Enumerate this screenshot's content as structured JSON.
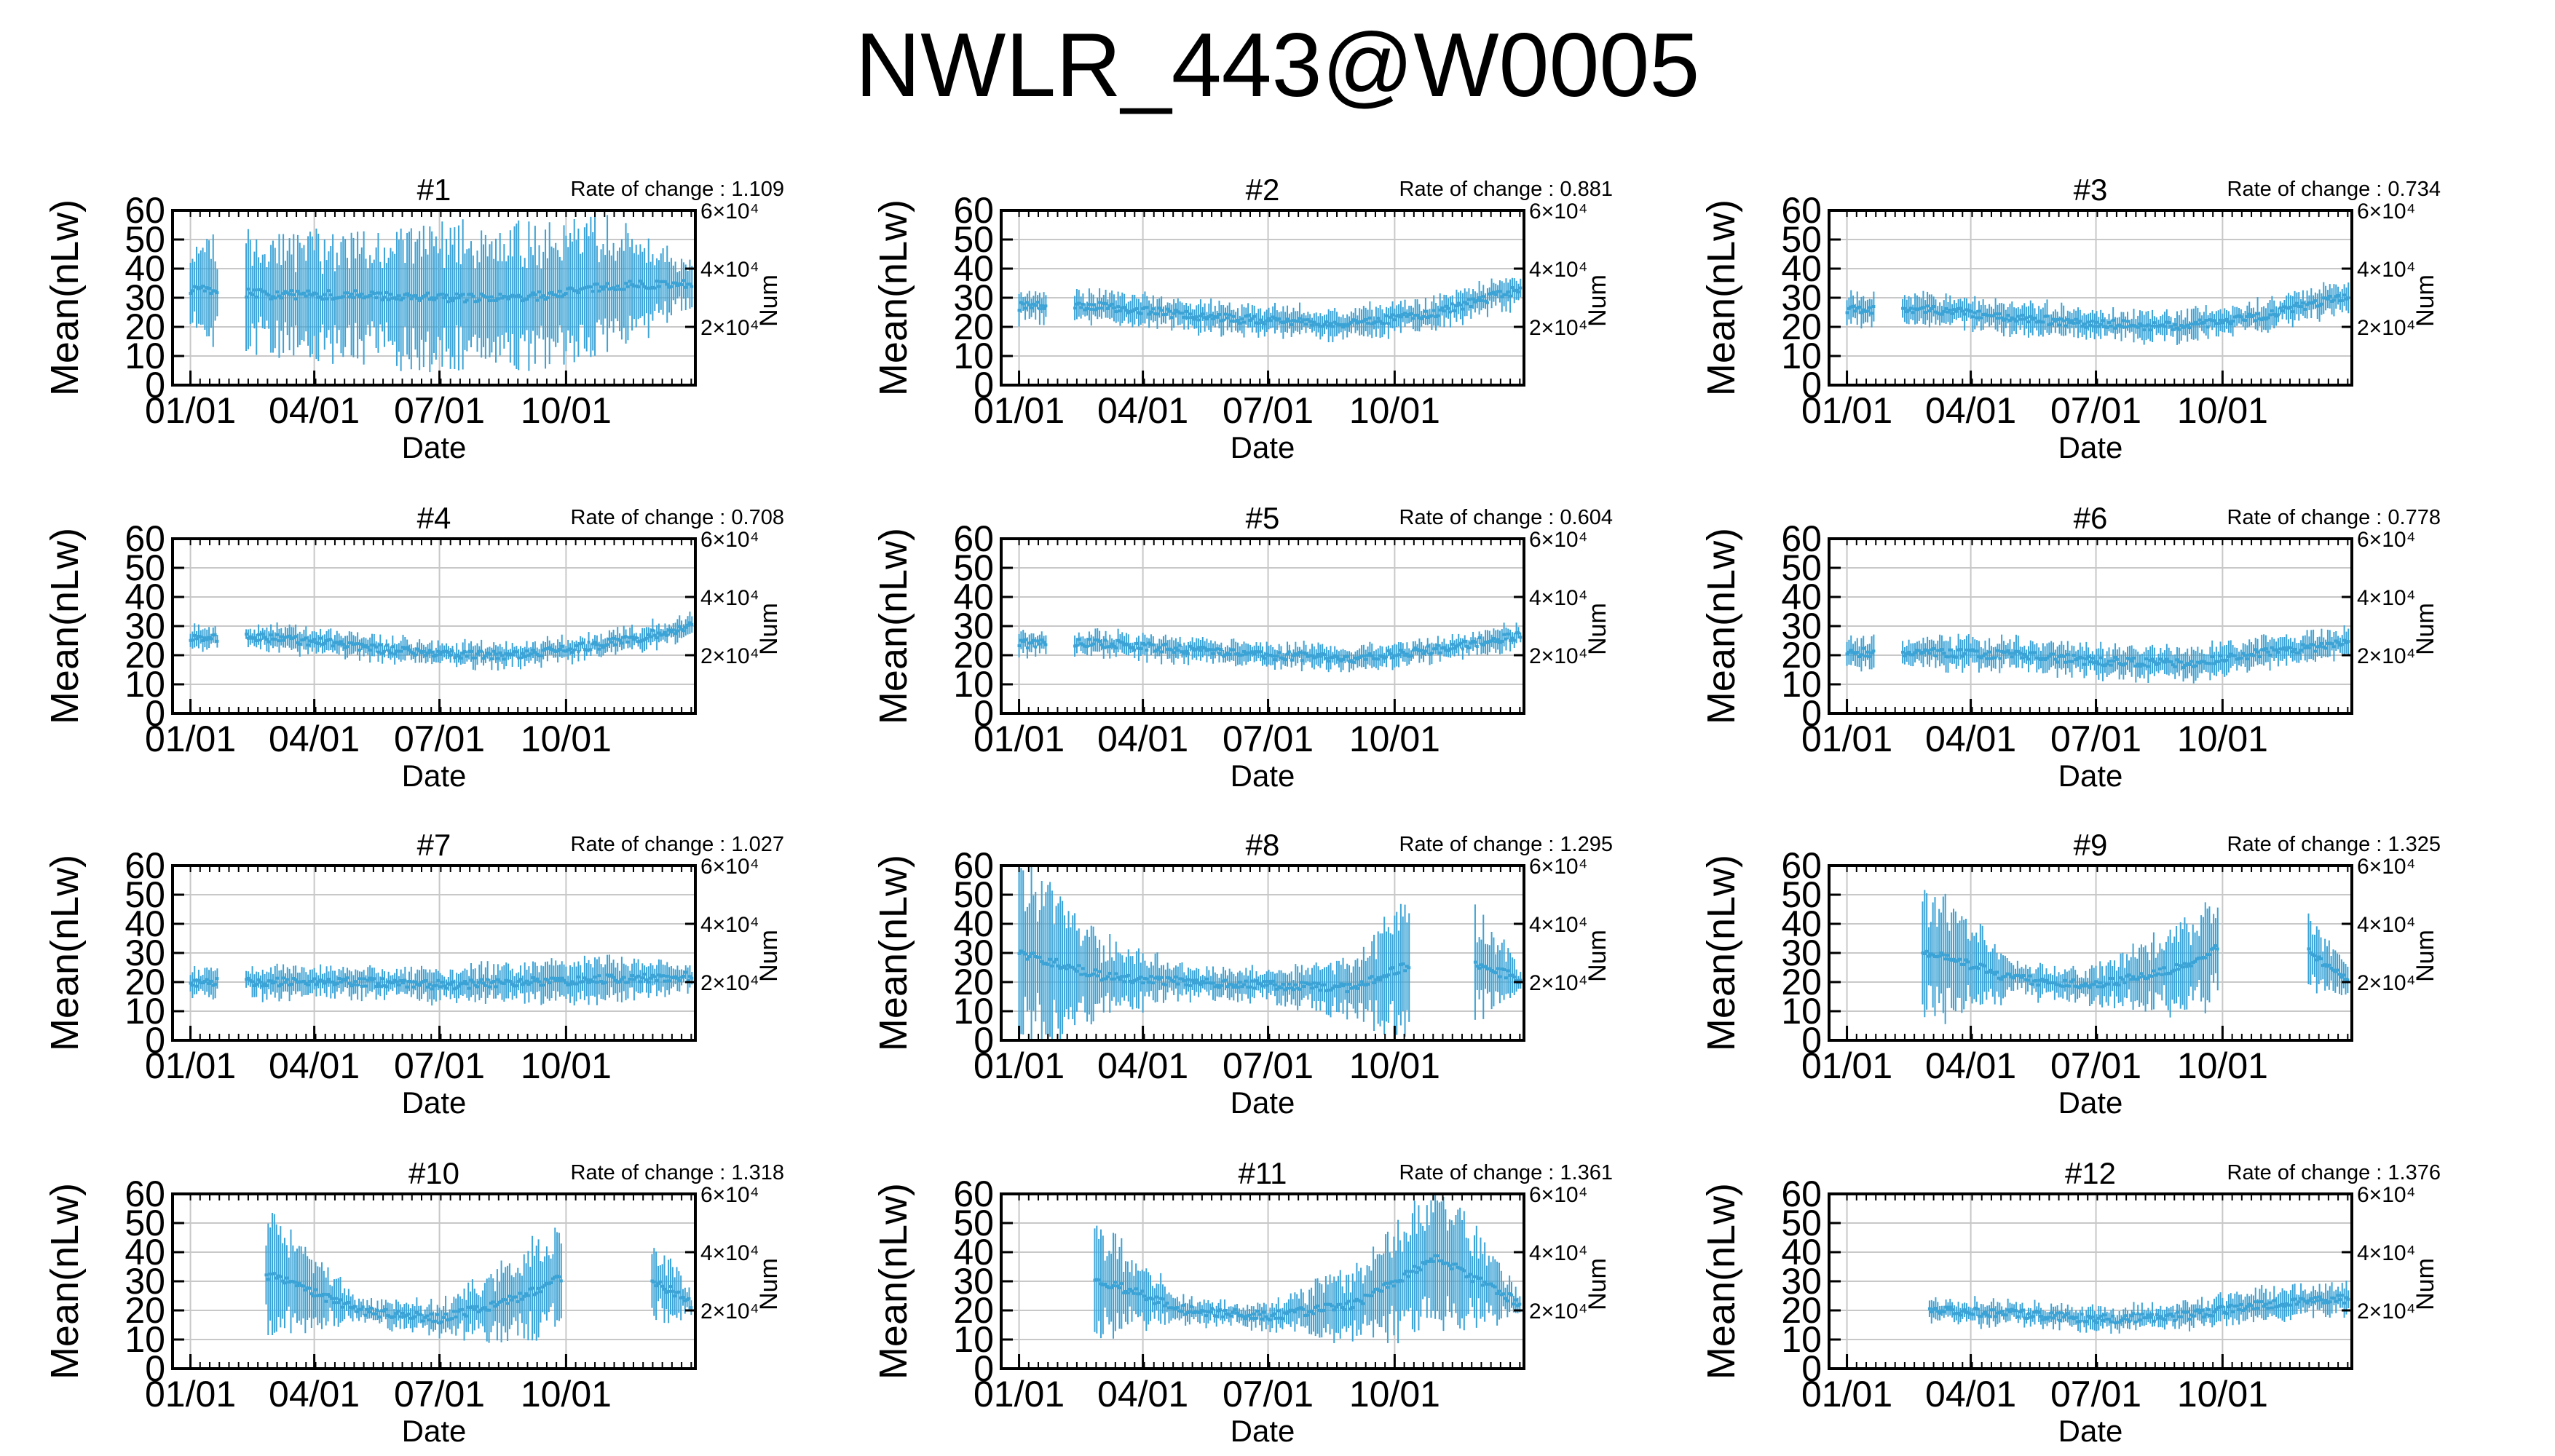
{
  "title": "NWLR_443@W0005",
  "common": {
    "ylabel": "Mean(nLw)",
    "xlabel": "Date",
    "y2label": "Num",
    "rate_prefix": "Rate of change : ",
    "x_ticks": [
      "01/01",
      "04/01",
      "07/01",
      "10/01"
    ],
    "y_ticks": [
      0,
      10,
      20,
      30,
      40,
      50,
      60
    ],
    "y2_ticks": [
      "2×10⁴",
      "4×10⁴",
      "6×10⁴"
    ],
    "ylim": [
      0,
      60
    ],
    "xlim_days": [
      -13,
      367
    ],
    "series_color": "#3ba3d6",
    "grid": true
  },
  "chart_data": [
    {
      "type": "scatter",
      "title": "#1",
      "rate": "1.109",
      "x_range": [
        0,
        365
      ],
      "gaps": [
        [
          21,
          40
        ]
      ],
      "base": [
        33,
        31,
        31,
        30,
        30,
        34,
        35
      ],
      "spread": [
        13,
        15,
        16,
        18,
        18,
        17,
        6
      ]
    },
    {
      "type": "scatter",
      "title": "#2",
      "rate": "0.881",
      "x_range": [
        0,
        365
      ],
      "gaps": [
        [
          21,
          40
        ]
      ],
      "base": [
        27,
        27,
        24,
        22,
        21,
        25,
        33
      ],
      "spread": [
        4,
        4,
        4,
        4,
        4,
        4,
        4
      ]
    },
    {
      "type": "scatter",
      "title": "#3",
      "rate": "0.734",
      "x_range": [
        0,
        365
      ],
      "gaps": [
        [
          21,
          40
        ]
      ],
      "base": [
        26,
        26,
        23,
        21,
        20,
        24,
        31
      ],
      "spread": [
        4,
        4,
        4,
        4,
        4,
        4,
        4
      ]
    },
    {
      "type": "scatter",
      "title": "#4",
      "rate": "0.708",
      "x_range": [
        0,
        365
      ],
      "gaps": [
        [
          21,
          40
        ]
      ],
      "base": [
        26,
        26,
        23,
        20,
        20,
        24,
        30
      ],
      "spread": [
        3,
        3,
        3,
        3,
        3,
        3,
        3
      ]
    },
    {
      "type": "scatter",
      "title": "#5",
      "rate": "0.604",
      "x_range": [
        0,
        365
      ],
      "gaps": [
        [
          21,
          40
        ]
      ],
      "base": [
        24,
        24,
        22,
        20,
        19,
        22,
        27
      ],
      "spread": [
        3,
        3,
        3,
        3,
        3,
        3,
        3
      ]
    },
    {
      "type": "scatter",
      "title": "#6",
      "rate": "0.778",
      "x_range": [
        0,
        365
      ],
      "gaps": [
        [
          21,
          40
        ]
      ],
      "base": [
        21,
        21,
        20,
        18,
        17,
        21,
        24
      ],
      "spread": [
        4,
        4,
        4,
        4,
        4,
        4,
        4
      ]
    },
    {
      "type": "scatter",
      "title": "#7",
      "rate": "1.027",
      "x_range": [
        0,
        365
      ],
      "gaps": [
        [
          21,
          40
        ]
      ],
      "base": [
        20,
        20,
        20,
        19,
        20,
        21,
        22
      ],
      "spread": [
        4,
        4,
        4,
        4,
        5,
        6,
        3
      ]
    },
    {
      "type": "scatter",
      "title": "#8",
      "rate": "1.295",
      "x_range": [
        0,
        365
      ],
      "gaps": [
        [
          285,
          330
        ]
      ],
      "base": [
        30,
        22,
        20,
        19,
        18,
        30,
        21
      ],
      "spread": [
        25,
        10,
        4,
        4,
        8,
        25,
        3
      ]
    },
    {
      "type": "scatter",
      "title": "#9",
      "rate": "1.325",
      "x_range": [
        55,
        365
      ],
      "gaps": [
        [
          270,
          335
        ]
      ],
      "base": [
        30,
        30,
        21,
        19,
        25,
        40,
        21
      ],
      "spread": [
        20,
        18,
        4,
        5,
        12,
        20,
        3
      ]
    },
    {
      "type": "scatter",
      "title": "#10",
      "rate": "1.318",
      "x_range": [
        55,
        365
      ],
      "gaps": [
        [
          270,
          335
        ]
      ],
      "base": [
        32,
        32,
        20,
        17,
        25,
        40,
        22
      ],
      "spread": [
        20,
        15,
        3,
        4,
        12,
        20,
        3
      ]
    },
    {
      "type": "scatter",
      "title": "#11",
      "rate": "1.361",
      "x_range": [
        55,
        365
      ],
      "gaps": [],
      "base": [
        30,
        30,
        20,
        18,
        22,
        38,
        22
      ],
      "spread": [
        18,
        14,
        3,
        3,
        10,
        20,
        3
      ]
    },
    {
      "type": "scatter",
      "title": "#12",
      "rate": "1.376",
      "x_range": [
        60,
        365
      ],
      "gaps": [],
      "base": [
        22,
        20,
        19,
        17,
        18,
        22,
        24
      ],
      "spread": [
        8,
        3,
        3,
        3,
        3,
        4,
        4
      ]
    }
  ]
}
